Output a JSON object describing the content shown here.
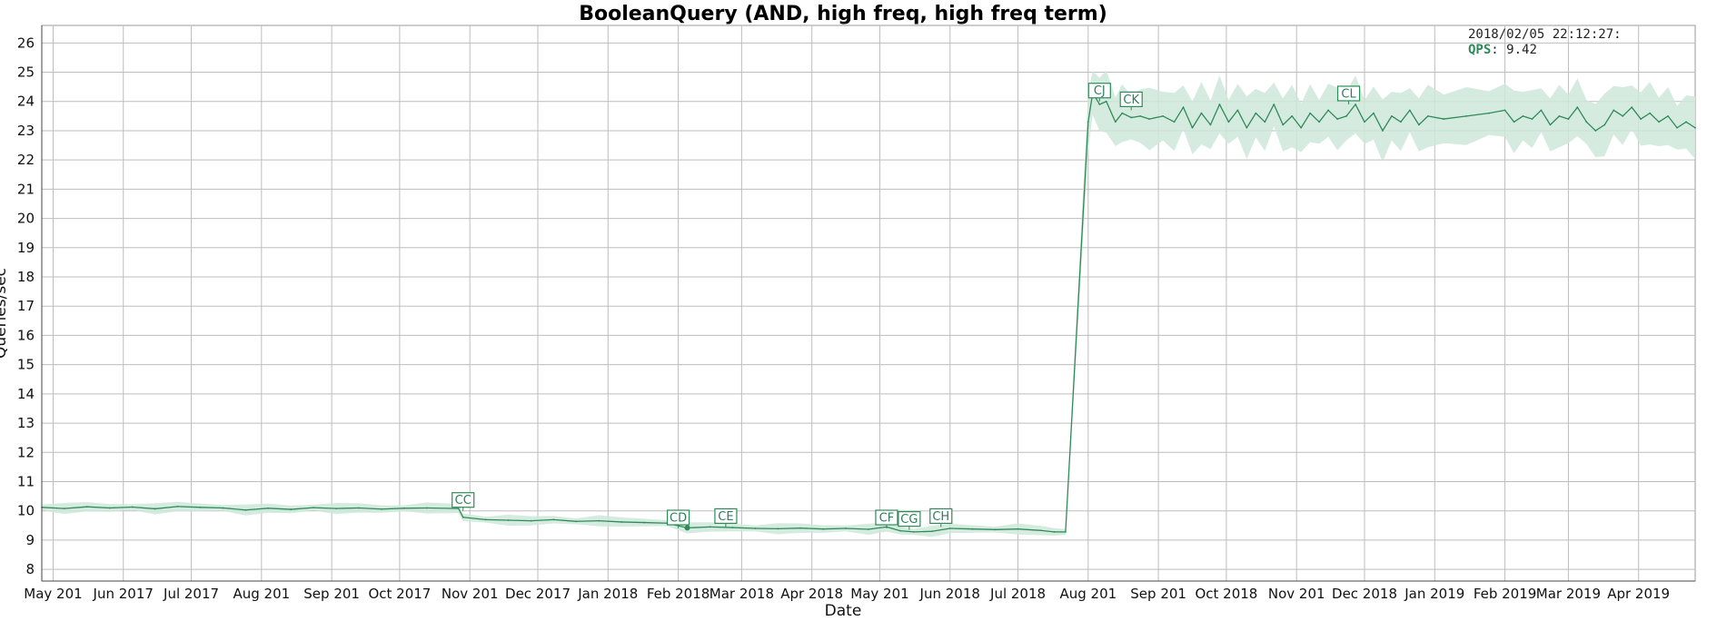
{
  "chart_data": {
    "type": "line",
    "title": "BooleanQuery (AND, high freq, high freq term)",
    "xlabel": "Date",
    "ylabel": "Queries/sec",
    "ylim": [
      7.6,
      26.6
    ],
    "xlim": [
      "2017-04-26",
      "2019-04-26"
    ],
    "grid": true,
    "colors": {
      "line": "#2e8b57",
      "band": "#cfe8da"
    },
    "y_ticks": [
      "8",
      "9",
      "10",
      "11",
      "12",
      "13",
      "14",
      "15",
      "16",
      "17",
      "18",
      "19",
      "20",
      "21",
      "22",
      "23",
      "24",
      "25",
      "26"
    ],
    "x_ticks": [
      {
        "date": "2017-05-01",
        "label": "May 201"
      },
      {
        "date": "2017-06-01",
        "label": "Jun 2017"
      },
      {
        "date": "2017-07-01",
        "label": "Jul 2017"
      },
      {
        "date": "2017-08-01",
        "label": "Aug 201"
      },
      {
        "date": "2017-09-01",
        "label": "Sep 201"
      },
      {
        "date": "2017-10-01",
        "label": "Oct 2017"
      },
      {
        "date": "2017-11-01",
        "label": "Nov 201"
      },
      {
        "date": "2017-12-01",
        "label": "Dec 2017"
      },
      {
        "date": "2018-01-01",
        "label": "Jan 2018"
      },
      {
        "date": "2018-02-01",
        "label": "Feb 2018"
      },
      {
        "date": "2018-03-01",
        "label": "Mar 2018"
      },
      {
        "date": "2018-04-01",
        "label": "Apr 2018"
      },
      {
        "date": "2018-05-01",
        "label": "May 201"
      },
      {
        "date": "2018-06-01",
        "label": "Jun 2018"
      },
      {
        "date": "2018-07-01",
        "label": "Jul 2018"
      },
      {
        "date": "2018-08-01",
        "label": "Aug 201"
      },
      {
        "date": "2018-09-01",
        "label": "Sep 201"
      },
      {
        "date": "2018-10-01",
        "label": "Oct 2018"
      },
      {
        "date": "2018-11-01",
        "label": "Nov 201"
      },
      {
        "date": "2018-12-01",
        "label": "Dec 2018"
      },
      {
        "date": "2019-01-01",
        "label": "Jan 2019"
      },
      {
        "date": "2019-02-01",
        "label": "Feb 2019"
      },
      {
        "date": "2019-03-01",
        "label": "Mar 2019"
      },
      {
        "date": "2019-04-01",
        "label": "Apr 2019"
      }
    ],
    "series": [
      {
        "points": [
          [
            "2017-04-26",
            10.12
          ],
          [
            "2017-05-06",
            10.08
          ],
          [
            "2017-05-16",
            10.14
          ],
          [
            "2017-05-26",
            10.1
          ],
          [
            "2017-06-05",
            10.13
          ],
          [
            "2017-06-15",
            10.07
          ],
          [
            "2017-06-25",
            10.15
          ],
          [
            "2017-07-05",
            10.12
          ],
          [
            "2017-07-15",
            10.1
          ],
          [
            "2017-07-25",
            10.03
          ],
          [
            "2017-08-04",
            10.09
          ],
          [
            "2017-08-14",
            10.05
          ],
          [
            "2017-08-24",
            10.11
          ],
          [
            "2017-09-03",
            10.08
          ],
          [
            "2017-09-13",
            10.1
          ],
          [
            "2017-09-23",
            10.06
          ],
          [
            "2017-10-03",
            10.09
          ],
          [
            "2017-10-13",
            10.1
          ],
          [
            "2017-10-27",
            10.08
          ],
          [
            "2017-10-29",
            9.78
          ],
          [
            "2017-11-08",
            9.7
          ],
          [
            "2017-11-18",
            9.68
          ],
          [
            "2017-11-28",
            9.66
          ],
          [
            "2017-12-08",
            9.7
          ],
          [
            "2017-12-18",
            9.64
          ],
          [
            "2017-12-28",
            9.66
          ],
          [
            "2018-01-07",
            9.62
          ],
          [
            "2018-01-17",
            9.6
          ],
          [
            "2018-01-27",
            9.58
          ],
          [
            "2018-02-05",
            9.42
          ],
          [
            "2018-02-15",
            9.45
          ],
          [
            "2018-02-25",
            9.43
          ],
          [
            "2018-03-07",
            9.4
          ],
          [
            "2018-03-17",
            9.39
          ],
          [
            "2018-03-27",
            9.41
          ],
          [
            "2018-04-06",
            9.38
          ],
          [
            "2018-04-16",
            9.4
          ],
          [
            "2018-04-26",
            9.37
          ],
          [
            "2018-05-04",
            9.45
          ],
          [
            "2018-05-10",
            9.32
          ],
          [
            "2018-05-16",
            9.28
          ],
          [
            "2018-05-24",
            9.3
          ],
          [
            "2018-06-01",
            9.4
          ],
          [
            "2018-06-11",
            9.38
          ],
          [
            "2018-06-21",
            9.36
          ],
          [
            "2018-07-01",
            9.38
          ],
          [
            "2018-07-11",
            9.33
          ],
          [
            "2018-07-17",
            9.28
          ],
          [
            "2018-07-22",
            9.28
          ],
          [
            "2018-08-01",
            23.3
          ],
          [
            "2018-08-03",
            24.3
          ],
          [
            "2018-08-06",
            23.9
          ],
          [
            "2018-08-09",
            24.0
          ],
          [
            "2018-08-13",
            23.3
          ],
          [
            "2018-08-16",
            23.6
          ],
          [
            "2018-08-20",
            23.45
          ],
          [
            "2018-08-24",
            23.5
          ],
          [
            "2018-08-28",
            23.4
          ],
          [
            "2018-09-03",
            23.5
          ],
          [
            "2018-09-08",
            23.3
          ],
          [
            "2018-09-12",
            23.8
          ],
          [
            "2018-09-16",
            23.1
          ],
          [
            "2018-09-20",
            23.6
          ],
          [
            "2018-09-24",
            23.2
          ],
          [
            "2018-09-28",
            23.9
          ],
          [
            "2018-10-02",
            23.3
          ],
          [
            "2018-10-06",
            23.7
          ],
          [
            "2018-10-10",
            23.1
          ],
          [
            "2018-10-14",
            23.6
          ],
          [
            "2018-10-18",
            23.3
          ],
          [
            "2018-10-22",
            23.9
          ],
          [
            "2018-10-26",
            23.2
          ],
          [
            "2018-10-30",
            23.5
          ],
          [
            "2018-11-03",
            23.1
          ],
          [
            "2018-11-07",
            23.6
          ],
          [
            "2018-11-11",
            23.3
          ],
          [
            "2018-11-15",
            23.7
          ],
          [
            "2018-11-19",
            23.4
          ],
          [
            "2018-11-23",
            23.5
          ],
          [
            "2018-11-27",
            23.9
          ],
          [
            "2018-12-01",
            23.3
          ],
          [
            "2018-12-05",
            23.6
          ],
          [
            "2018-12-09",
            23.0
          ],
          [
            "2018-12-13",
            23.5
          ],
          [
            "2018-12-17",
            23.3
          ],
          [
            "2018-12-21",
            23.7
          ],
          [
            "2018-12-25",
            23.2
          ],
          [
            "2018-12-29",
            23.5
          ],
          [
            "2019-01-05",
            23.4
          ],
          [
            "2019-01-15",
            23.5
          ],
          [
            "2019-01-25",
            23.6
          ],
          [
            "2019-02-01",
            23.7
          ],
          [
            "2019-02-05",
            23.3
          ],
          [
            "2019-02-09",
            23.5
          ],
          [
            "2019-02-13",
            23.4
          ],
          [
            "2019-02-17",
            23.7
          ],
          [
            "2019-02-21",
            23.2
          ],
          [
            "2019-02-25",
            23.5
          ],
          [
            "2019-03-01",
            23.4
          ],
          [
            "2019-03-05",
            23.8
          ],
          [
            "2019-03-09",
            23.3
          ],
          [
            "2019-03-13",
            23.0
          ],
          [
            "2019-03-17",
            23.2
          ],
          [
            "2019-03-21",
            23.7
          ],
          [
            "2019-03-25",
            23.5
          ],
          [
            "2019-03-29",
            23.8
          ],
          [
            "2019-04-02",
            23.4
          ],
          [
            "2019-04-06",
            23.6
          ],
          [
            "2019-04-10",
            23.3
          ],
          [
            "2019-04-14",
            23.5
          ],
          [
            "2019-04-18",
            23.1
          ],
          [
            "2019-04-22",
            23.3
          ],
          [
            "2019-04-26",
            23.1
          ]
        ]
      }
    ],
    "annotations": [
      {
        "label": "CC",
        "date": "2017-10-29",
        "y": 10.0
      },
      {
        "label": "CD",
        "date": "2018-02-01",
        "y": 9.4
      },
      {
        "label": "CE",
        "date": "2018-02-22",
        "y": 9.45
      },
      {
        "label": "CF",
        "date": "2018-05-04",
        "y": 9.4
      },
      {
        "label": "CG",
        "date": "2018-05-14",
        "y": 9.35
      },
      {
        "label": "CH",
        "date": "2018-05-28",
        "y": 9.45
      },
      {
        "label": "CJ",
        "date": "2018-08-06",
        "y": 24.0
      },
      {
        "label": "CK",
        "date": "2018-08-20",
        "y": 23.7
      },
      {
        "label": "CL",
        "date": "2018-11-24",
        "y": 23.9
      }
    ],
    "highlight_point": {
      "date": "2018-02-05",
      "y": 9.42
    }
  },
  "legend": {
    "timestamp": "2018/02/05 22:12:27:",
    "series_name": "QPS",
    "value": "9.42"
  }
}
